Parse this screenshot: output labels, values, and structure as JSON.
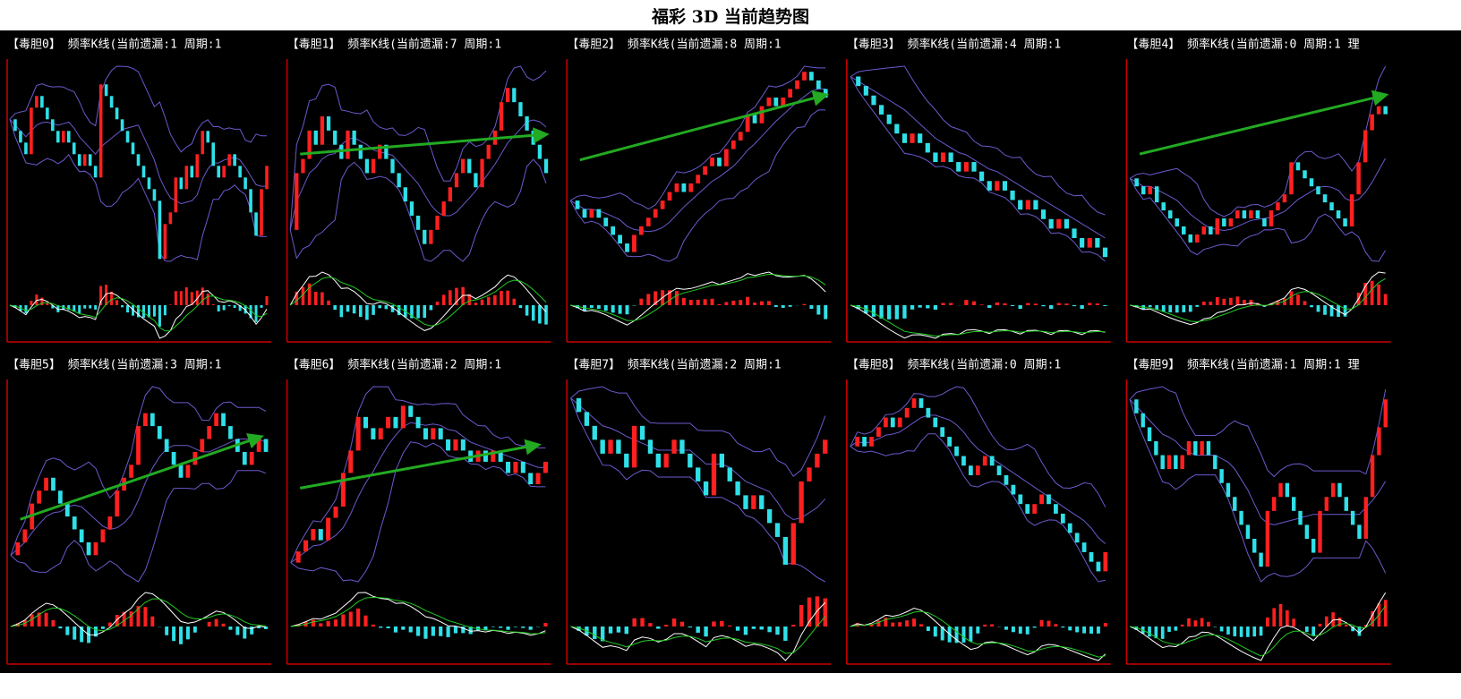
{
  "title": "福彩 3D 当前趋势图",
  "chart_data": [
    {
      "type": "candlestick",
      "title": "【毒胆0】 频率K线(当前遗漏:1 周期:1",
      "up_color": "#ff2020",
      "down_color": "#30e0e8",
      "band_color": "#6a5acd",
      "values": [
        14,
        13,
        12,
        11,
        15,
        16,
        15,
        14,
        13,
        12,
        13,
        12,
        11,
        10,
        11,
        10,
        9,
        17,
        16,
        15,
        14,
        13,
        12,
        11,
        10,
        9,
        8,
        7,
        2,
        5,
        6,
        9,
        8,
        10,
        9,
        11,
        13,
        12,
        10,
        9,
        10,
        11,
        10,
        9,
        8,
        6,
        4,
        8,
        10
      ]
    },
    {
      "type": "candlestick",
      "title": "【毒胆1】 频率K线(当前遗漏:7 周期:1",
      "up_color": "#ff2020",
      "down_color": "#30e0e8",
      "band_color": "#6a5acd",
      "values": [
        8,
        12,
        13,
        15,
        14,
        16,
        15,
        14,
        13,
        15,
        14,
        13,
        12,
        13,
        14,
        13,
        12,
        11,
        10,
        9,
        8,
        7,
        8,
        9,
        10,
        11,
        12,
        13,
        12,
        11,
        13,
        14,
        15,
        17,
        18,
        17,
        16,
        15,
        14,
        13,
        12
      ]
    },
    {
      "type": "candlestick",
      "title": "【毒胆2】 频率K线(当前遗漏:8 周期:1",
      "up_color": "#ff2020",
      "down_color": "#30e0e8",
      "band_color": "#6a5acd",
      "values": [
        10,
        9,
        8,
        9,
        8,
        7,
        6,
        5,
        4,
        6,
        7,
        8,
        9,
        10,
        11,
        12,
        11,
        12,
        13,
        14,
        15,
        14,
        16,
        17,
        18,
        20,
        19,
        21,
        22,
        21,
        22,
        23,
        24,
        25,
        24,
        23,
        22
      ]
    },
    {
      "type": "candlestick",
      "title": "【毒胆3】 频率K线(当前遗漏:4 周期:1",
      "up_color": "#ff2020",
      "down_color": "#30e0e8",
      "band_color": "#6a5acd",
      "values": [
        20,
        19,
        18,
        17,
        16,
        15,
        14,
        13,
        14,
        13,
        12,
        11,
        12,
        11,
        10,
        11,
        10,
        9,
        8,
        9,
        8,
        7,
        6,
        7,
        6,
        5,
        4,
        5,
        4,
        3,
        2,
        3,
        2,
        1
      ]
    },
    {
      "type": "candlestick",
      "title": "【毒胆4】 频率K线(当前遗漏:0 周期:1 理",
      "up_color": "#ff2020",
      "down_color": "#30e0e8",
      "band_color": "#6a5acd",
      "values": [
        10,
        9,
        8,
        9,
        7,
        6,
        5,
        4,
        3,
        2,
        3,
        4,
        3,
        5,
        4,
        5,
        6,
        5,
        6,
        5,
        4,
        6,
        7,
        8,
        12,
        11,
        10,
        9,
        8,
        7,
        6,
        5,
        4,
        8,
        12,
        16,
        18,
        19,
        18
      ]
    },
    {
      "type": "candlestick",
      "title": "【毒胆5】 频率K线(当前遗漏:3 周期:1",
      "up_color": "#ff2020",
      "down_color": "#30e0e8",
      "band_color": "#6a5acd",
      "values": [
        4,
        5,
        6,
        8,
        9,
        10,
        9,
        8,
        7,
        6,
        5,
        4,
        5,
        6,
        7,
        9,
        10,
        11,
        14,
        15,
        14,
        13,
        12,
        11,
        10,
        11,
        12,
        13,
        14,
        15,
        14,
        13,
        12,
        11,
        12,
        13,
        12
      ]
    },
    {
      "type": "candlestick",
      "title": "【毒胆6】 频率K线(当前遗漏:2 周期:1",
      "up_color": "#ff2020",
      "down_color": "#30e0e8",
      "band_color": "#6a5acd",
      "values": [
        2,
        3,
        4,
        5,
        4,
        6,
        7,
        10,
        12,
        15,
        14,
        13,
        14,
        15,
        14,
        16,
        15,
        14,
        13,
        14,
        13,
        12,
        13,
        12,
        11,
        12,
        11,
        12,
        11,
        10,
        11,
        10,
        9,
        10,
        11
      ]
    },
    {
      "type": "candlestick",
      "title": "【毒胆7】 频率K线(当前遗漏:2 周期:1",
      "up_color": "#ff2020",
      "down_color": "#30e0e8",
      "band_color": "#6a5acd",
      "values": [
        16,
        15,
        14,
        13,
        12,
        13,
        12,
        11,
        14,
        13,
        12,
        11,
        12,
        13,
        12,
        11,
        10,
        9,
        12,
        11,
        10,
        9,
        8,
        9,
        8,
        7,
        6,
        4,
        7,
        10,
        11,
        12,
        13
      ]
    },
    {
      "type": "candlestick",
      "title": "【毒胆8】 频率K线(当前遗漏:0 周期:1",
      "up_color": "#ff2020",
      "down_color": "#30e0e8",
      "band_color": "#6a5acd",
      "values": [
        14,
        15,
        14,
        15,
        16,
        17,
        16,
        17,
        18,
        19,
        18,
        17,
        16,
        15,
        14,
        13,
        12,
        11,
        12,
        13,
        12,
        11,
        10,
        9,
        8,
        7,
        8,
        9,
        8,
        7,
        6,
        5,
        4,
        3,
        2,
        1,
        3
      ]
    },
    {
      "type": "candlestick",
      "title": "【毒胆9】 频率K线(当前遗漏:1 周期:1 理",
      "up_color": "#ff2020",
      "down_color": "#30e0e8",
      "band_color": "#6a5acd",
      "values": [
        16,
        15,
        14,
        13,
        12,
        11,
        12,
        11,
        12,
        13,
        12,
        13,
        12,
        11,
        10,
        9,
        8,
        7,
        6,
        5,
        4,
        8,
        9,
        10,
        9,
        8,
        7,
        6,
        5,
        8,
        9,
        10,
        9,
        8,
        7,
        6,
        9,
        12,
        14,
        16
      ]
    }
  ]
}
